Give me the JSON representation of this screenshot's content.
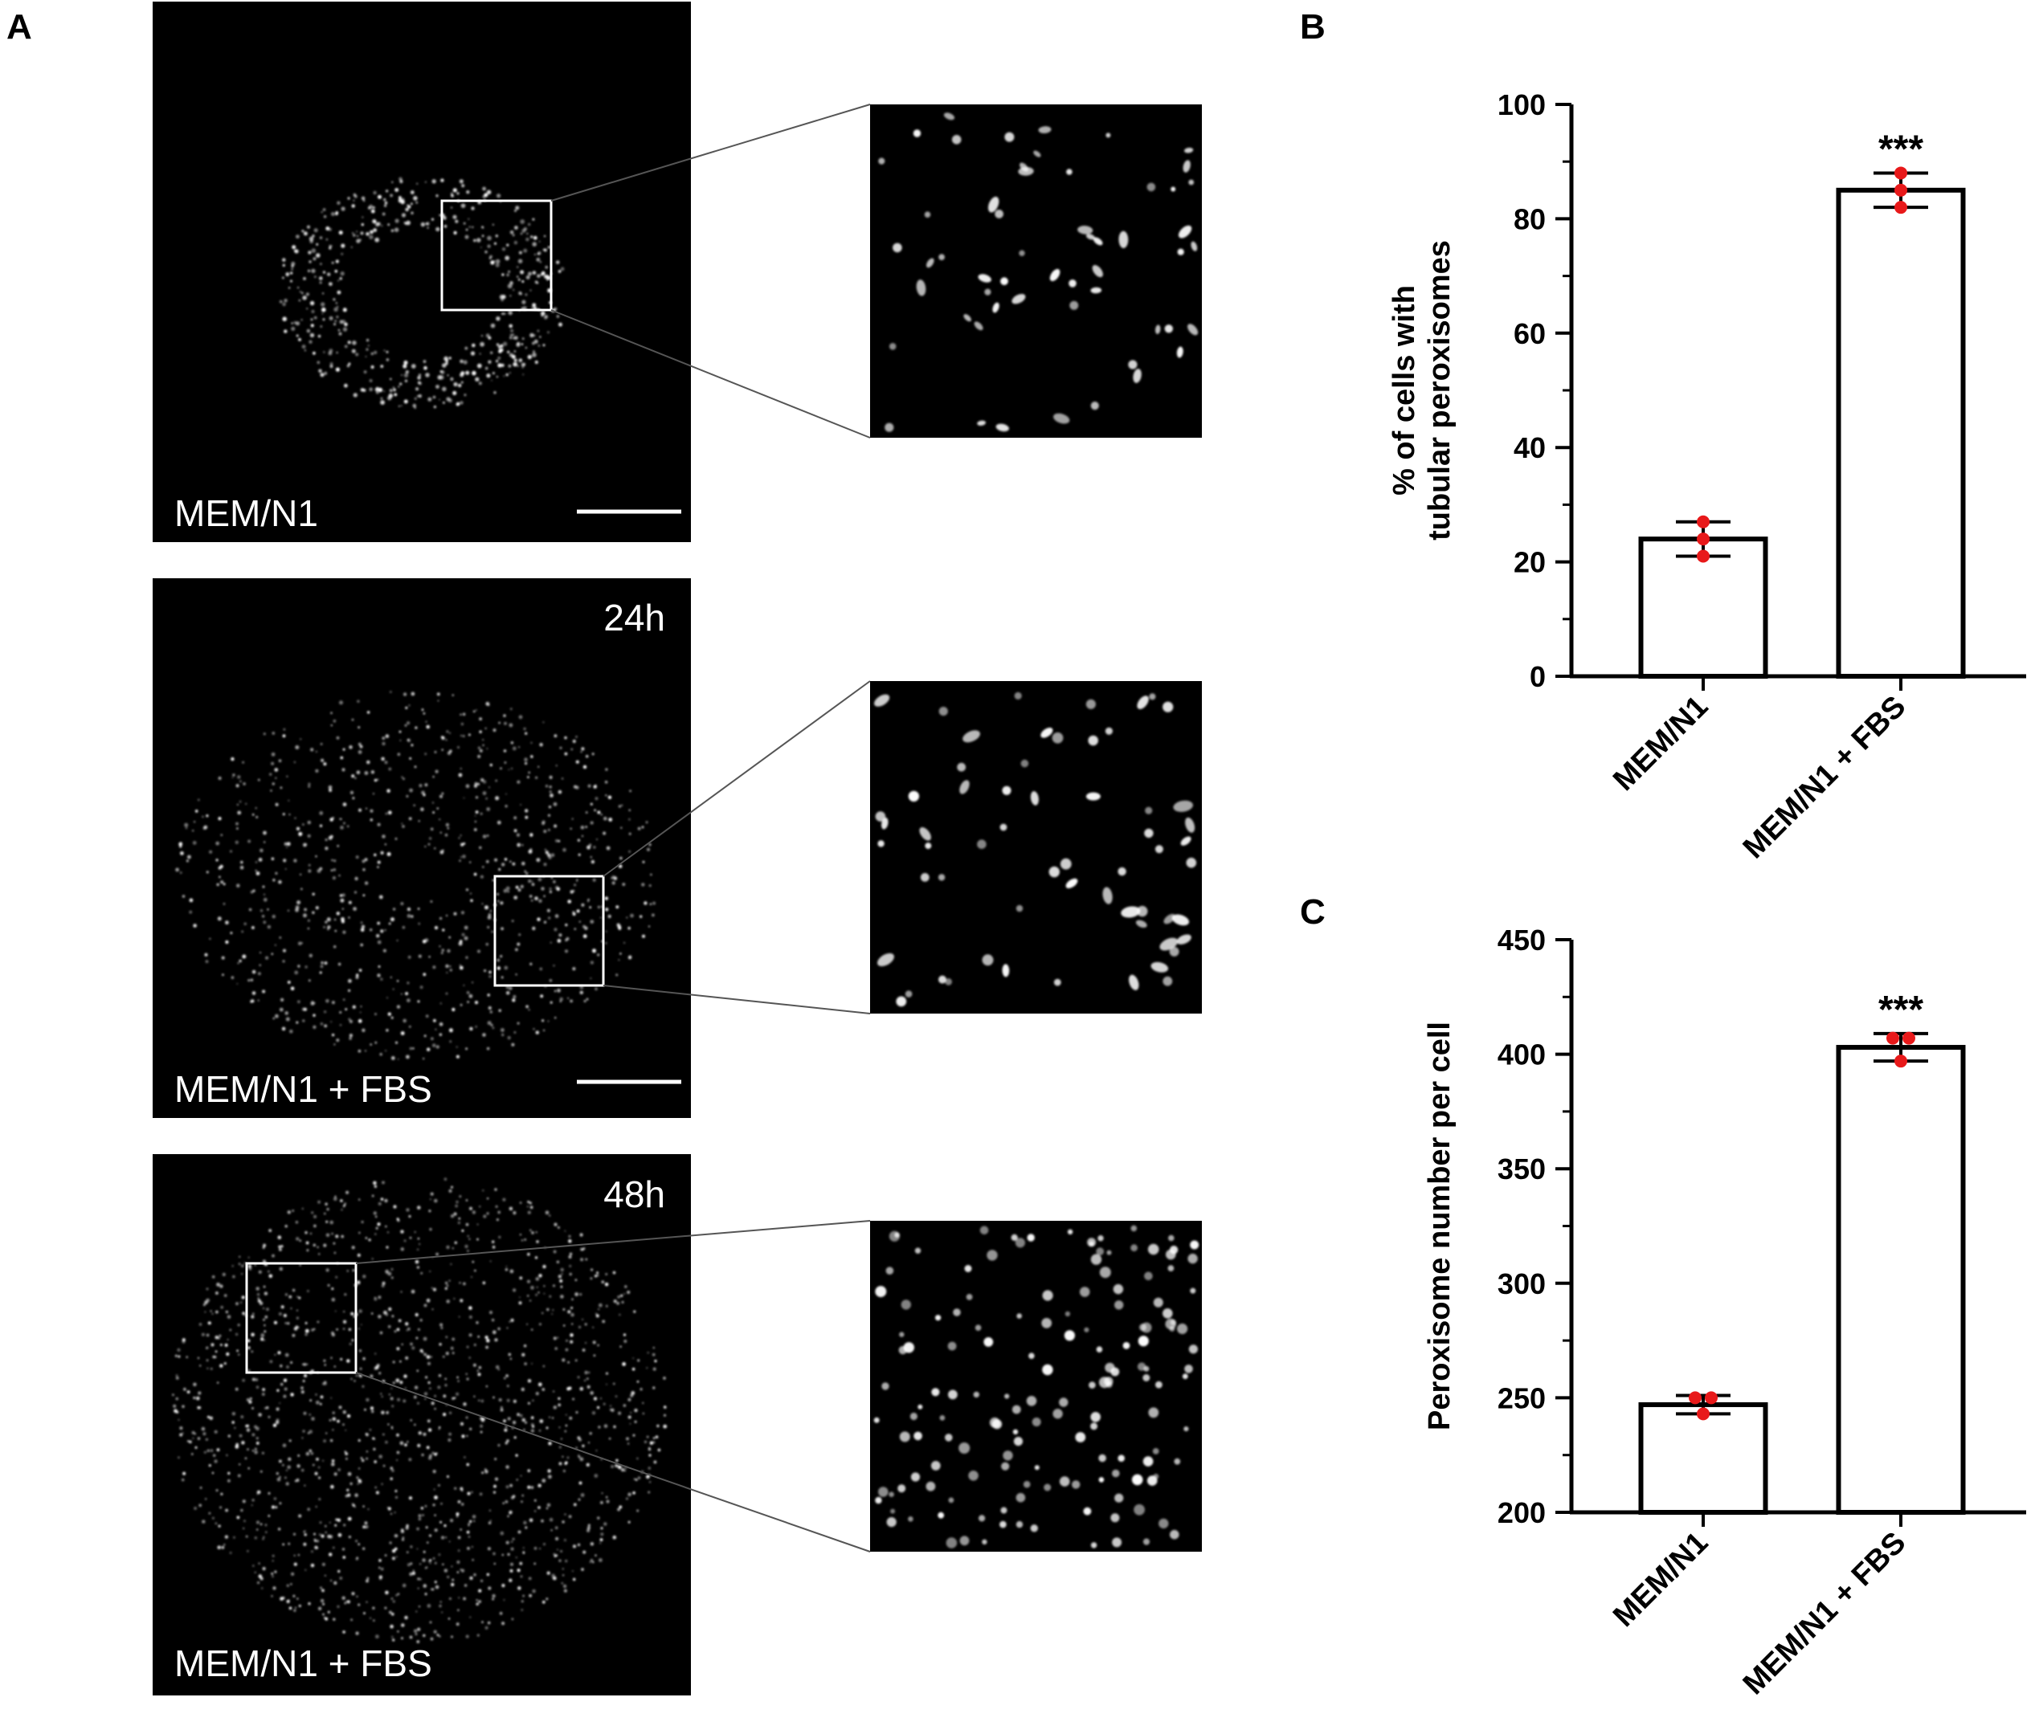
{
  "panel_letters": {
    "a": "A",
    "b": "B",
    "c": "C"
  },
  "micrographs": [
    {
      "id": "top",
      "condition_label": "MEM/N1",
      "time_label": ""
    },
    {
      "id": "middle",
      "condition_label": "MEM/N1  + FBS",
      "time_label": "24h"
    },
    {
      "id": "bottom",
      "condition_label": "MEM/N1  + FBS",
      "time_label": "48h"
    }
  ],
  "colors": {
    "background": "#000000",
    "point": "#e8191a",
    "bar_fill": "#ffffff",
    "bar_stroke": "#000000"
  },
  "chart_data": [
    {
      "panel": "B",
      "type": "bar",
      "categories": [
        "MEM/N1",
        "MEM/N1 + FBS"
      ],
      "values": [
        24,
        85
      ],
      "error": [
        3,
        3
      ],
      "points": [
        [
          21,
          24,
          27
        ],
        [
          82,
          85,
          88
        ]
      ],
      "significance": [
        "",
        "***"
      ],
      "ylabel_lines": [
        "% of cells with",
        "tubular peroxisomes"
      ],
      "ylim": [
        0,
        100
      ],
      "yticks": [
        0,
        20,
        40,
        60,
        80,
        100
      ]
    },
    {
      "panel": "C",
      "type": "bar",
      "categories": [
        "MEM/N1",
        "MEM/N1 + FBS"
      ],
      "values": [
        247,
        403
      ],
      "error": [
        4,
        6
      ],
      "points": [
        [
          243,
          250,
          250
        ],
        [
          397,
          407,
          407
        ]
      ],
      "significance": [
        "",
        "***"
      ],
      "ylabel_lines": [
        "Peroxisome number per cell"
      ],
      "ylim": [
        200,
        450
      ],
      "yticks": [
        200,
        250,
        300,
        350,
        400,
        450
      ]
    }
  ]
}
